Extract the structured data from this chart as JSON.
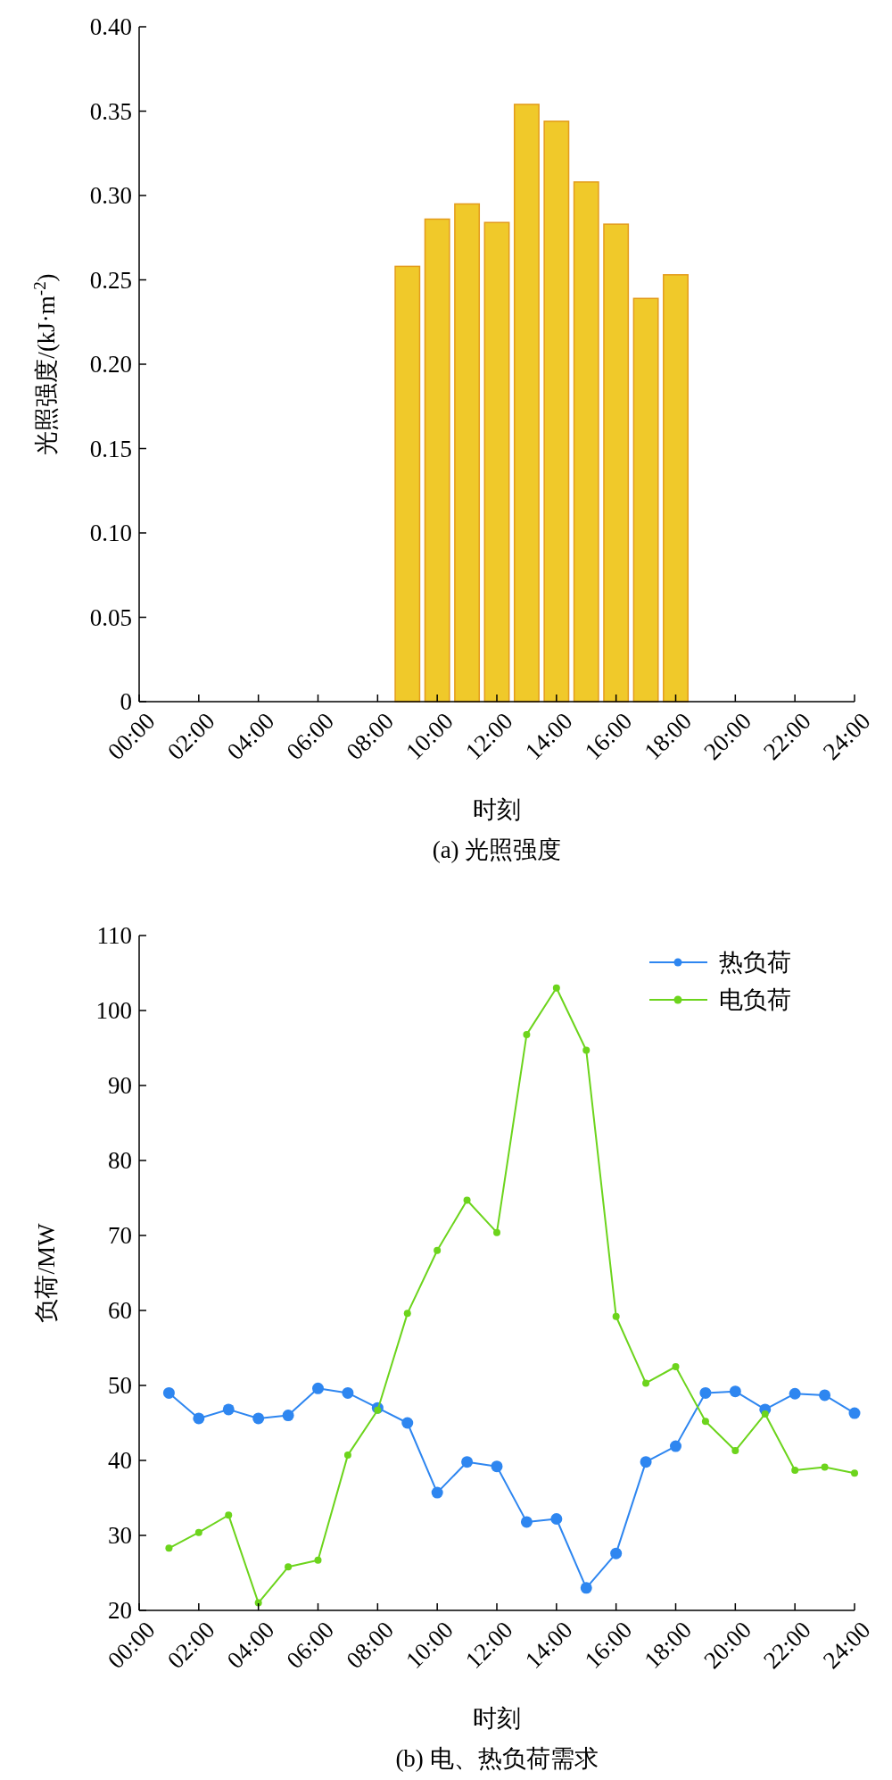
{
  "chart_data": [
    {
      "type": "bar",
      "title": "(a) 光照强度",
      "xlabel": "时刻",
      "ylabel": "光照强度/(kJ·m$^{-2}$)",
      "x": [
        1,
        2,
        3,
        4,
        5,
        6,
        7,
        8,
        9,
        10,
        11,
        12,
        13,
        14,
        15,
        16,
        17,
        18,
        19,
        20,
        21,
        22,
        23,
        24
      ],
      "series": [
        {
          "color": "#f0c92a",
          "values": [
            0,
            0,
            0,
            0,
            0,
            0,
            0,
            0,
            0.258,
            0.286,
            0.295,
            0.284,
            0.354,
            0.344,
            0.308,
            0.283,
            0.239,
            0.253,
            0,
            0,
            0,
            0,
            0,
            0
          ]
        }
      ],
      "xlim": [
        0,
        24
      ],
      "xticks": [
        {
          "value": 0,
          "label": "00:00"
        },
        {
          "value": 2,
          "label": "02:00"
        },
        {
          "value": 4,
          "label": "04:00"
        },
        {
          "value": 6,
          "label": "06:00"
        },
        {
          "value": 8,
          "label": "08:00"
        },
        {
          "value": 10,
          "label": "10:00"
        },
        {
          "value": 12,
          "label": "12:00"
        },
        {
          "value": 14,
          "label": "14:00"
        },
        {
          "value": 16,
          "label": "16:00"
        },
        {
          "value": 18,
          "label": "18:00"
        },
        {
          "value": 20,
          "label": "20:00"
        },
        {
          "value": 22,
          "label": "22:00"
        },
        {
          "value": 24,
          "label": "24:00"
        }
      ],
      "ylim": [
        0,
        0.4
      ],
      "yticks": [
        0,
        0.05,
        {
          "value": 0.1,
          "label": "0.10"
        },
        0.15,
        {
          "value": 0.2,
          "label": "0.20"
        },
        0.25,
        {
          "value": 0.3,
          "label": "0.30"
        },
        0.35,
        {
          "value": 0.4,
          "label": "0.40"
        }
      ],
      "grid": false,
      "legend": false
    },
    {
      "type": "line",
      "title": "(b) 电、热负荷需求",
      "xlabel": "时刻",
      "ylabel": "负荷/MW",
      "x": [
        1,
        2,
        3,
        4,
        5,
        6,
        7,
        8,
        9,
        10,
        11,
        12,
        13,
        14,
        15,
        16,
        17,
        18,
        19,
        20,
        21,
        22,
        23,
        24
      ],
      "series": [
        {
          "name": "热负荷",
          "color": "#2e86f0",
          "values": [
            49,
            45.6,
            46.8,
            45.6,
            46,
            49.6,
            49,
            47,
            45,
            35.7,
            39.8,
            39.2,
            31.8,
            32.2,
            23,
            27.6,
            39.8,
            41.9,
            49,
            49.2,
            46.8,
            48.9,
            48.7,
            46.3
          ]
        },
        {
          "name": "电负荷",
          "color": "#6cd41c",
          "values": [
            28.3,
            30.4,
            32.7,
            21,
            25.8,
            26.7,
            40.7,
            46.7,
            59.6,
            68,
            74.7,
            70.4,
            96.8,
            103,
            94.7,
            59.2,
            50.3,
            52.5,
            45.2,
            41.3,
            46.2,
            38.7,
            39.1,
            38.3
          ]
        }
      ],
      "xlim": [
        0,
        24
      ],
      "xticks": [
        {
          "value": 0,
          "label": "00:00"
        },
        {
          "value": 2,
          "label": "02:00"
        },
        {
          "value": 4,
          "label": "04:00"
        },
        {
          "value": 6,
          "label": "06:00"
        },
        {
          "value": 8,
          "label": "08:00"
        },
        {
          "value": 10,
          "label": "10:00"
        },
        {
          "value": 12,
          "label": "12:00"
        },
        {
          "value": 14,
          "label": "14:00"
        },
        {
          "value": 16,
          "label": "16:00"
        },
        {
          "value": 18,
          "label": "18:00"
        },
        {
          "value": 20,
          "label": "20:00"
        },
        {
          "value": 22,
          "label": "22:00"
        },
        {
          "value": 24,
          "label": "24:00"
        }
      ],
      "ylim": [
        20,
        110
      ],
      "yticks": [
        20,
        30,
        40,
        50,
        60,
        70,
        80,
        90,
        100,
        110
      ],
      "grid": false,
      "legend": "top right",
      "marker": "circle",
      "line_style": "solid"
    }
  ]
}
